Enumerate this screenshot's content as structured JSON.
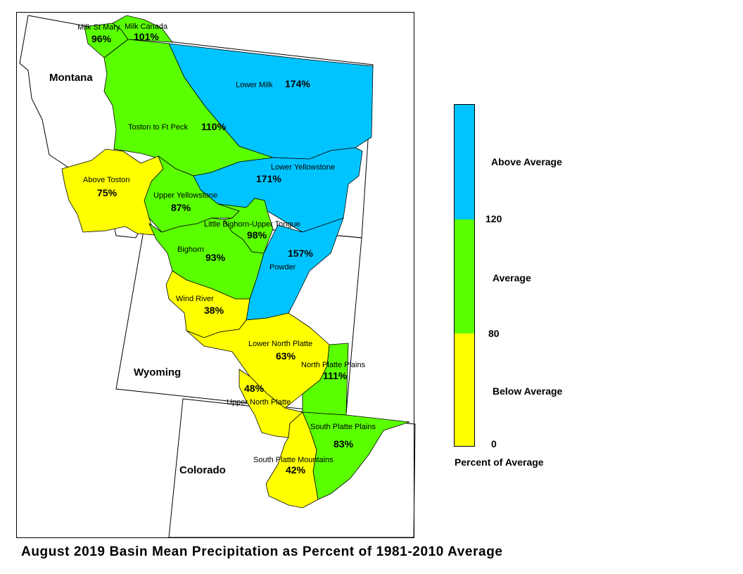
{
  "colors": {
    "above": "#00c4ff",
    "average": "#5aff00",
    "below": "#ffff00"
  },
  "states": [
    "Montana",
    "Wyoming",
    "Colorado"
  ],
  "basins": [
    {
      "name": "Milk St Mary",
      "percent": "96%",
      "category": "average"
    },
    {
      "name": "Milk Canada",
      "percent": "101%",
      "category": "average"
    },
    {
      "name": "Lower Milk",
      "percent": "174%",
      "category": "above"
    },
    {
      "name": "Toston to Ft Peck",
      "percent": "110%",
      "category": "average"
    },
    {
      "name": "Above Toston",
      "percent": "75%",
      "category": "below"
    },
    {
      "name": "Upper Yellowstone",
      "percent": "87%",
      "category": "average"
    },
    {
      "name": "Lower Yellowstone",
      "percent": "171%",
      "category": "above"
    },
    {
      "name": "Little Bighorn-Upper Tongue",
      "percent": "98%",
      "category": "average"
    },
    {
      "name": "Bighorn",
      "percent": "93%",
      "category": "average"
    },
    {
      "name": "Powder",
      "percent": "157%",
      "category": "above"
    },
    {
      "name": "Wind River",
      "percent": "38%",
      "category": "below"
    },
    {
      "name": "Lower North Platte",
      "percent": "63%",
      "category": "below"
    },
    {
      "name": "North Platte Plains",
      "percent": "111%",
      "category": "average"
    },
    {
      "name": "Upper North Platte",
      "percent": "48%",
      "category": "below"
    },
    {
      "name": "South Platte Plains",
      "percent": "83%",
      "category": "average"
    },
    {
      "name": "South Platte Mountains",
      "percent": "42%",
      "category": "below"
    }
  ],
  "legend": {
    "title": "Percent of Average",
    "categories": [
      "Above Average",
      "Average",
      "Below Average"
    ],
    "ticks": [
      "120",
      "80",
      "0"
    ]
  },
  "caption": "August 2019 Basin Mean Precipitation as Percent of 1981-2010 Average"
}
